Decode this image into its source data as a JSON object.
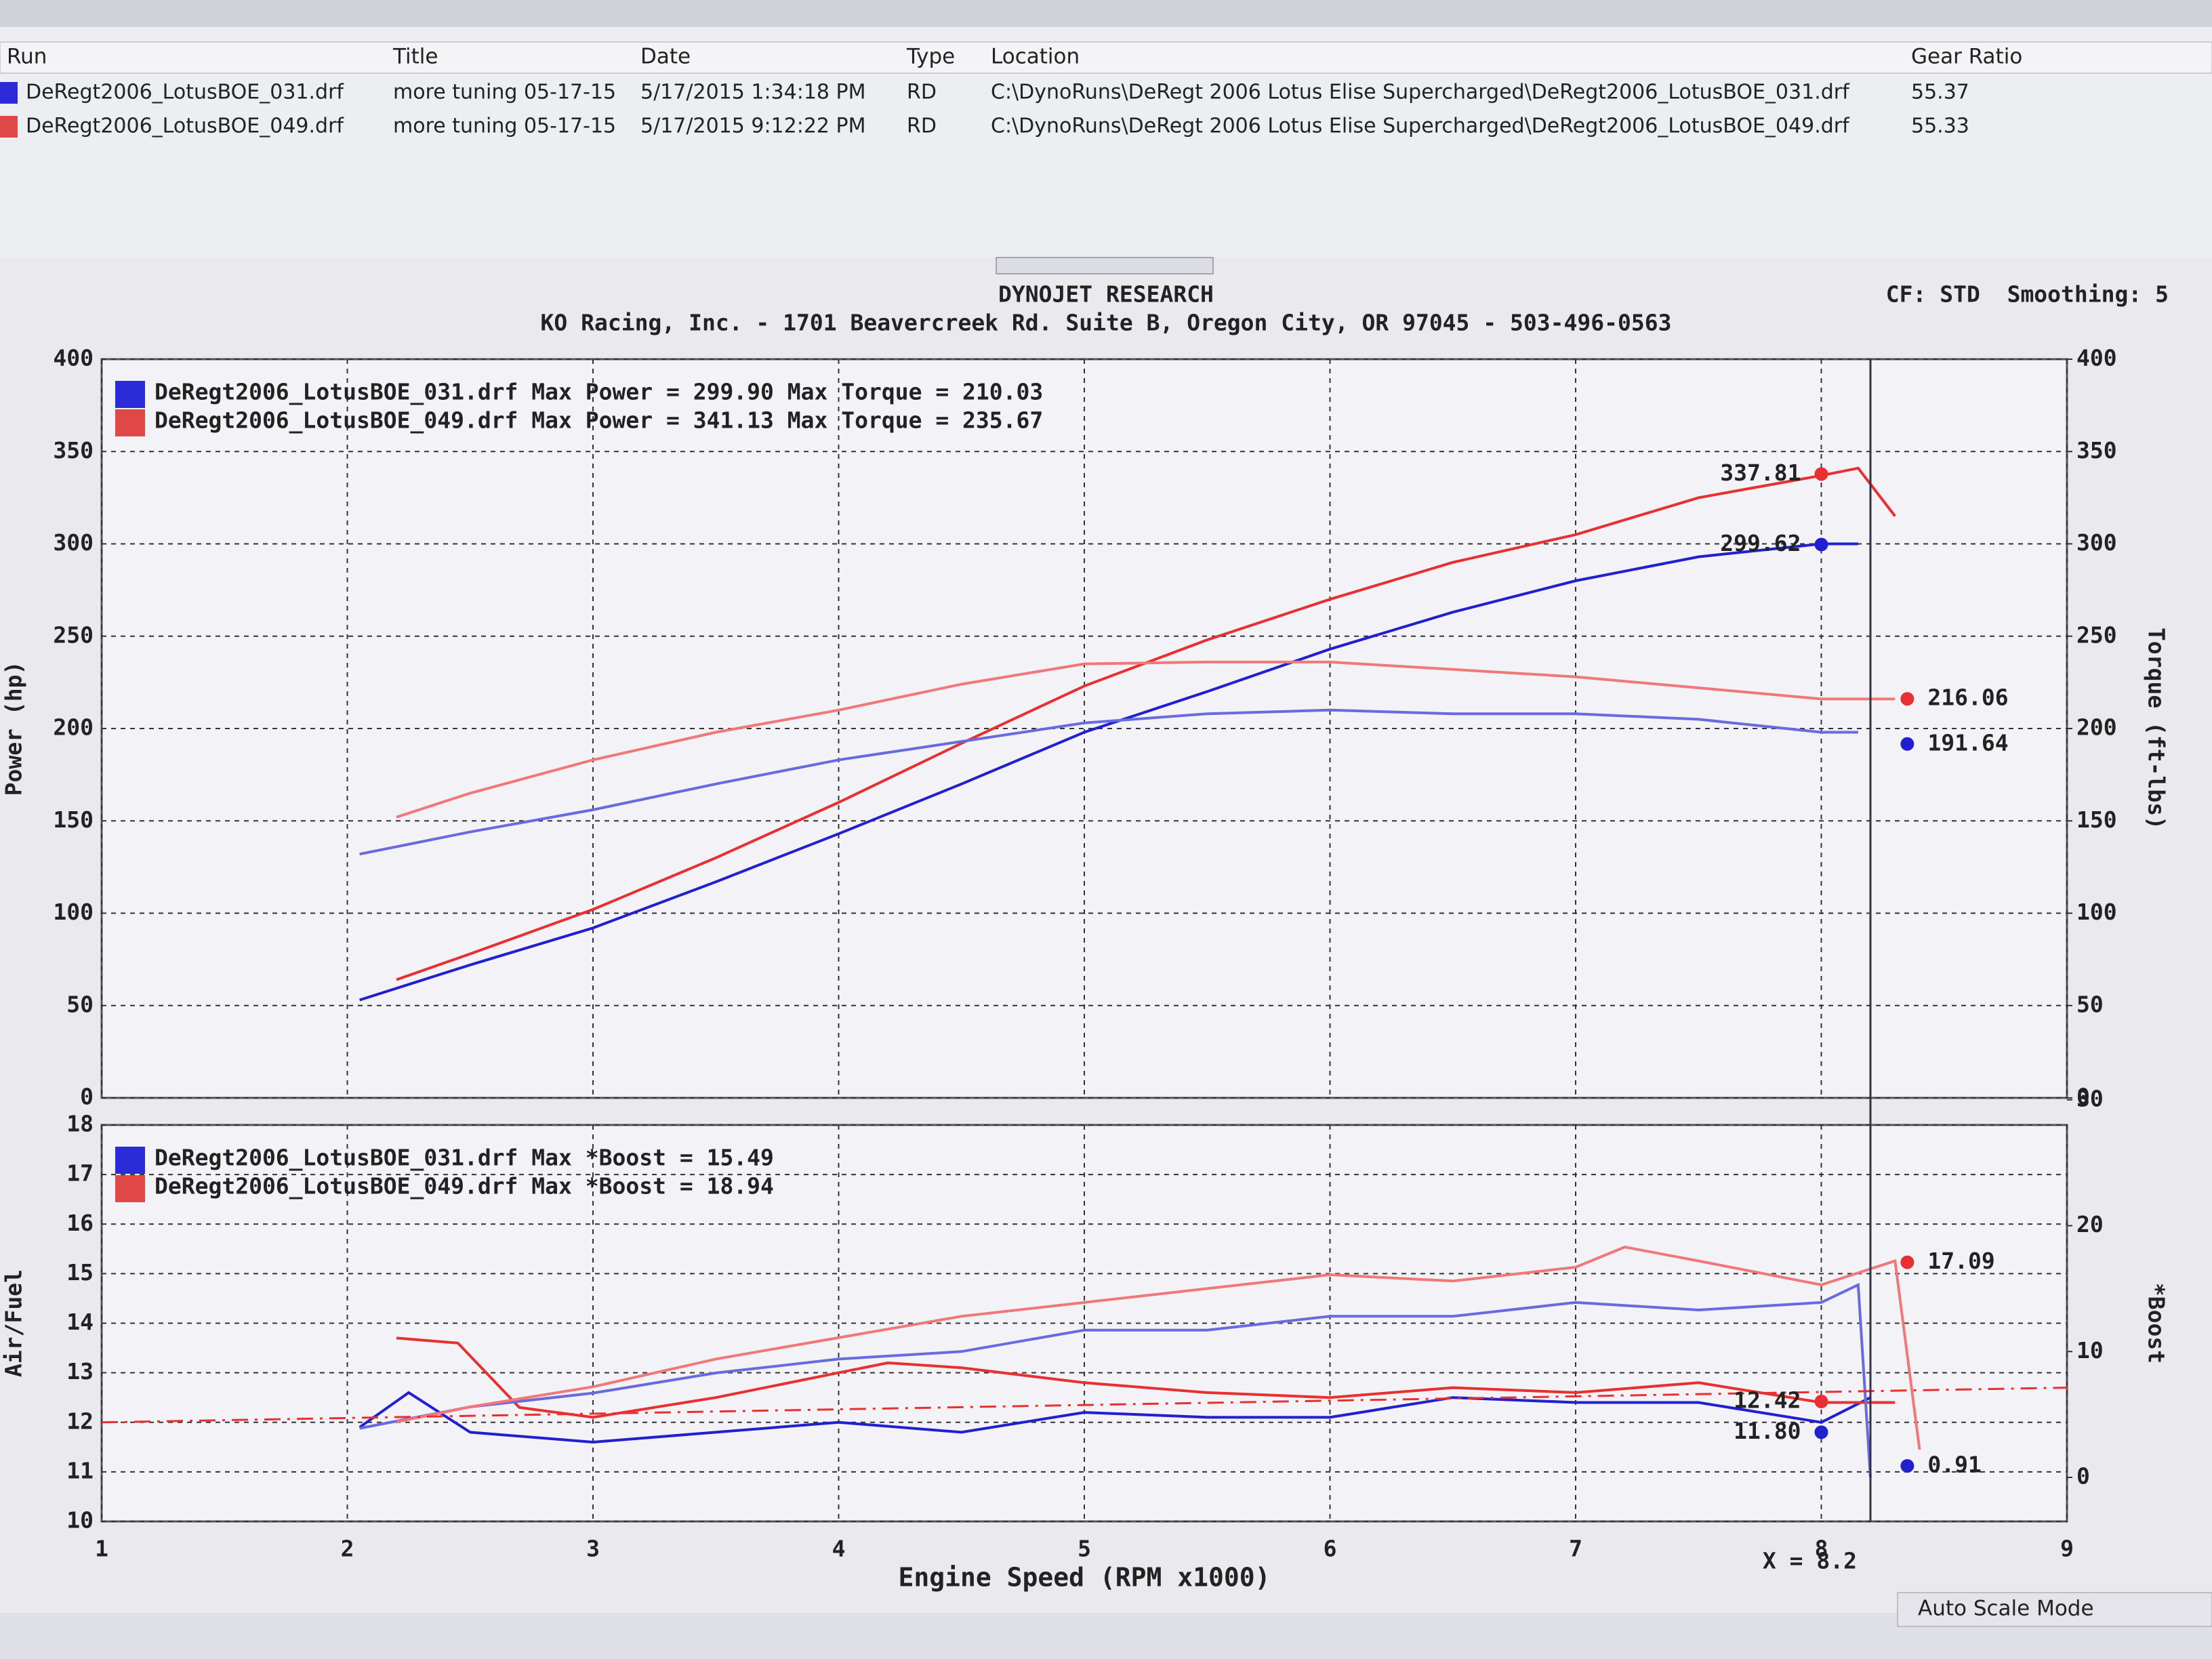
{
  "table": {
    "columns": [
      "Run",
      "Title",
      "Date",
      "Type",
      "Location",
      "Gear Ratio"
    ],
    "rows": [
      [
        "DeRegt2006_LotusBOE_031.drf",
        "more tuning 05-17-15",
        "5/17/2015 1:34:18 PM",
        "RD",
        "C:\\DynoRuns\\DeRegt 2006 Lotus Elise Supercharged\\DeRegt2006_LotusBOE_031.drf",
        "55.37"
      ],
      [
        "DeRegt2006_LotusBOE_049.drf",
        "more tuning 05-17-15",
        "5/17/2015 9:12:22 PM",
        "RD",
        "C:\\DynoRuns\\DeRegt 2006 Lotus Elise Supercharged\\DeRegt2006_LotusBOE_049.drf",
        "55.33"
      ]
    ],
    "row_colors": [
      "#2b2bd8",
      "#e04848"
    ]
  },
  "header": {
    "title": "DYNOJET RESEARCH",
    "subtitle": "KO Racing, Inc. - 1701 Beavercreek Rd. Suite B, Oregon City, OR 97045 - 503-496-0563",
    "settings": "CF: STD  Smoothing: 5"
  },
  "chart_data": [
    {
      "type": "line",
      "ylabel": "Power (hp)",
      "y2label": "Torque (ft-lbs)",
      "xlim": [
        1,
        9
      ],
      "ylim": [
        0,
        400
      ],
      "yticks": [
        0,
        50,
        100,
        150,
        200,
        250,
        300,
        350,
        400
      ],
      "y2lim": [
        0,
        400
      ],
      "y2ticks": [
        0,
        50,
        100,
        150,
        200,
        250,
        300,
        350,
        400
      ],
      "grid": true,
      "legend": [
        {
          "text": "DeRegt2006_LotusBOE_031.drf Max Power = 299.90 Max Torque = 210.03",
          "color": "#2b2bd8"
        },
        {
          "text": "DeRegt2006_LotusBOE_049.drf Max Power = 341.13 Max Torque = 235.67",
          "color": "#e04848"
        }
      ],
      "series": [
        {
          "color": "#2020d0",
          "axis": "y",
          "x": [
            2.05,
            2.5,
            3,
            3.5,
            4,
            4.5,
            5,
            5.5,
            6,
            6.5,
            7,
            7.5,
            8,
            8.15
          ],
          "values": [
            53,
            72,
            92,
            117,
            143,
            170,
            198,
            220,
            243,
            263,
            280,
            293,
            300,
            300
          ]
        },
        {
          "color": "#e83030",
          "axis": "y",
          "x": [
            2.2,
            2.5,
            3,
            3.5,
            4,
            4.5,
            5,
            5.5,
            6,
            6.5,
            7,
            7.5,
            8,
            8.15,
            8.3
          ],
          "values": [
            64,
            78,
            102,
            130,
            160,
            192,
            223,
            248,
            270,
            290,
            305,
            325,
            337,
            341,
            315
          ]
        },
        {
          "color": "#6a6ae0",
          "axis": "y2",
          "x": [
            2.05,
            2.5,
            3,
            3.5,
            4,
            4.5,
            5,
            5.5,
            6,
            6.5,
            7,
            7.5,
            8,
            8.15
          ],
          "values": [
            132,
            144,
            156,
            170,
            183,
            193,
            203,
            208,
            210,
            208,
            208,
            205,
            198,
            198
          ]
        },
        {
          "color": "#f07878",
          "axis": "y2",
          "x": [
            2.2,
            2.5,
            3,
            3.5,
            4,
            4.5,
            5,
            5.5,
            6,
            6.5,
            7,
            7.5,
            8,
            8.15,
            8.3
          ],
          "values": [
            152,
            165,
            183,
            198,
            210,
            224,
            235,
            236,
            236,
            232,
            228,
            222,
            216,
            216,
            216
          ]
        }
      ],
      "annotations": [
        {
          "x": 8,
          "value": 337.81,
          "label": "337.81",
          "axis": "y",
          "color": "#e83030"
        },
        {
          "x": 8,
          "value": 299.62,
          "label": "299.62",
          "axis": "y",
          "color": "#2020d0"
        },
        {
          "x": 8.35,
          "value": 216.06,
          "label": "216.06",
          "axis": "y2",
          "color": "#e83030"
        },
        {
          "x": 8.35,
          "value": 191.64,
          "label": "191.64",
          "axis": "y2",
          "color": "#2020d0"
        }
      ]
    },
    {
      "type": "line",
      "xlabel": "Engine Speed (RPM x1000)",
      "ylabel": "Air/Fuel",
      "y2label": "*Boost",
      "xlim": [
        1,
        9
      ],
      "xticks": [
        1,
        2,
        3,
        4,
        5,
        6,
        7,
        8,
        9
      ],
      "ylim": [
        10,
        18
      ],
      "yticks": [
        10,
        11,
        12,
        13,
        14,
        15,
        16,
        17,
        18
      ],
      "y2lim": [
        -3.5,
        28
      ],
      "y2ticks": [
        0,
        10,
        20,
        30
      ],
      "grid": true,
      "legend": [
        {
          "text": "DeRegt2006_LotusBOE_031.drf Max *Boost = 15.49",
          "color": "#2b2bd8"
        },
        {
          "text": "DeRegt2006_LotusBOE_049.drf Max *Boost = 18.94",
          "color": "#e04848"
        }
      ],
      "series": [
        {
          "color": "#2020d0",
          "axis": "y",
          "x": [
            2.05,
            2.25,
            2.5,
            3,
            3.5,
            4,
            4.5,
            5,
            5.5,
            6,
            6.5,
            7,
            7.5,
            8,
            8.2
          ],
          "values": [
            11.9,
            12.6,
            11.8,
            11.6,
            11.8,
            12.0,
            11.8,
            12.2,
            12.1,
            12.1,
            12.5,
            12.4,
            12.4,
            12.0,
            12.5
          ]
        },
        {
          "color": "#e83030",
          "axis": "y",
          "x": [
            2.2,
            2.45,
            2.7,
            3,
            3.5,
            4,
            4.2,
            4.5,
            5,
            5.5,
            6,
            6.5,
            7,
            7.5,
            8,
            8.3
          ],
          "values": [
            13.7,
            13.6,
            12.3,
            12.1,
            12.5,
            13.0,
            13.2,
            13.1,
            12.8,
            12.6,
            12.5,
            12.7,
            12.6,
            12.8,
            12.4,
            12.4
          ]
        },
        {
          "color": "#6a6ae0",
          "axis": "y2",
          "x": [
            2.05,
            2.5,
            3,
            3.5,
            4,
            4.5,
            5,
            5.5,
            6,
            6.5,
            7,
            7.5,
            8,
            8.15,
            8.2
          ],
          "values": [
            3.9,
            5.6,
            6.7,
            8.3,
            9.4,
            10,
            11.7,
            11.7,
            12.8,
            12.8,
            13.9,
            13.3,
            13.9,
            15.3,
            0
          ]
        },
        {
          "color": "#f07878",
          "axis": "y2",
          "x": [
            2.2,
            2.5,
            3,
            3.5,
            4,
            4.5,
            5,
            5.5,
            6,
            6.5,
            7,
            7.2,
            7.5,
            8,
            8.3,
            8.4
          ],
          "values": [
            4.4,
            5.6,
            7.2,
            9.4,
            11.1,
            12.8,
            13.9,
            15.0,
            16.1,
            15.6,
            16.7,
            18.3,
            17.2,
            15.3,
            17.2,
            2.2
          ]
        },
        {
          "color": "#e83030",
          "axis": "y",
          "dash": true,
          "x": [
            1,
            9
          ],
          "values": [
            12.0,
            12.7
          ]
        }
      ],
      "annotations": [
        {
          "x": 8.35,
          "value": 17.09,
          "label": "17.09",
          "axis": "y2",
          "color": "#e83030"
        },
        {
          "x": 8.0,
          "value": 12.42,
          "label": "12.42",
          "axis": "y",
          "color": "#e83030"
        },
        {
          "x": 8.0,
          "value": 11.8,
          "label": "11.80",
          "axis": "y",
          "color": "#2020d0"
        },
        {
          "x": 8.35,
          "value": 0.91,
          "label": "0.91",
          "axis": "y2",
          "color": "#2020d0"
        }
      ],
      "cursor": {
        "x": 8.2,
        "label": "X = 8.2"
      }
    }
  ],
  "status": "Auto Scale Mode"
}
